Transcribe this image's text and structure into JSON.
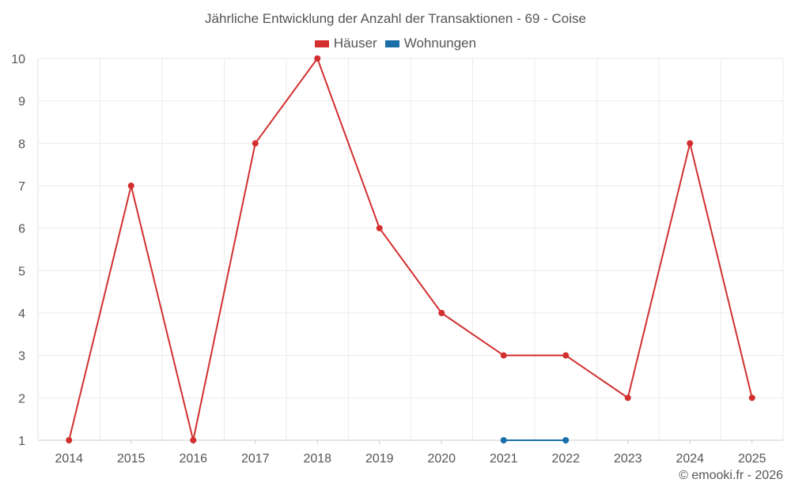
{
  "chart_data": {
    "type": "line",
    "title": "Jährliche Entwicklung der Anzahl der Transaktionen - 69 - Coise",
    "categories": [
      "2014",
      "2015",
      "2016",
      "2017",
      "2018",
      "2019",
      "2020",
      "2021",
      "2022",
      "2023",
      "2024",
      "2025"
    ],
    "ylim": [
      1,
      10
    ],
    "yticks": [
      1,
      2,
      3,
      4,
      5,
      6,
      7,
      8,
      9,
      10
    ],
    "grid": true,
    "legend_position": "top-center",
    "series": [
      {
        "name": "Häuser",
        "color": "#d32f2f",
        "values": [
          1,
          7,
          1,
          8,
          10,
          6,
          4,
          3,
          3,
          2,
          8,
          2
        ]
      },
      {
        "name": "Wohnungen",
        "color": "#1a6fa8",
        "values": [
          null,
          null,
          null,
          null,
          null,
          null,
          null,
          1,
          1,
          null,
          null,
          null
        ]
      }
    ]
  },
  "credit": "© emooki.fr - 2026"
}
